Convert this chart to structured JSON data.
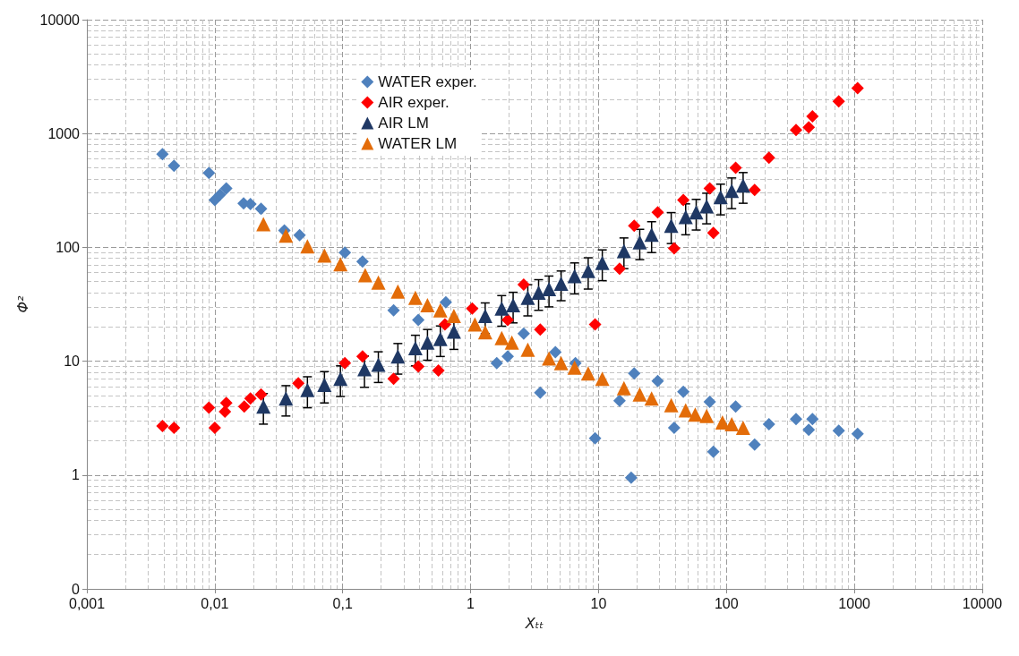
{
  "chart_data": {
    "type": "scatter",
    "xlabel": "Xₜₜ",
    "ylabel": "Φ²",
    "log": "xy",
    "grid": true,
    "legend": "top",
    "xlim": [
      0.001,
      10000
    ],
    "ylim": [
      0.1,
      10000
    ],
    "xticks": [
      {
        "value": 0.001,
        "label": "0,001"
      },
      {
        "value": 0.01,
        "label": "0,01"
      },
      {
        "value": 0.1,
        "label": "0,1"
      },
      1,
      10,
      100,
      1000,
      10000
    ],
    "yticks": [
      {
        "value": 0.1,
        "label": "0"
      },
      1,
      10,
      100,
      1000,
      10000
    ],
    "series": [
      {
        "name": "WATER exper.",
        "color": "#4f81bd",
        "marker": "diamond",
        "x": [
          0.0039,
          0.0048,
          0.009,
          0.01,
          0.011,
          0.0123,
          0.0168,
          0.019,
          0.023,
          0.035,
          0.046,
          0.104,
          0.143,
          0.18,
          0.25,
          0.39,
          0.64,
          1.6,
          1.95,
          2.6,
          3.5,
          4.6,
          6.6,
          9.4,
          19,
          29,
          14.6,
          18,
          46,
          39,
          74,
          79,
          118,
          166,
          215,
          350,
          470,
          440,
          755,
          1060
        ],
        "values": [
          660,
          520,
          450,
          260,
          290,
          330,
          243,
          240,
          218,
          141,
          128,
          90,
          75,
          null,
          28,
          23,
          33,
          9.6,
          11,
          17.5,
          5.3,
          12,
          9.6,
          2.1,
          7.8,
          6.7,
          4.5,
          0.95,
          5.4,
          2.6,
          4.4,
          1.6,
          4.0,
          1.85,
          2.8,
          3.1,
          3.1,
          2.5,
          2.45,
          2.3
        ]
      },
      {
        "name": "AIR exper.",
        "color": "#ff0000",
        "marker": "diamond",
        "x": [
          0.0039,
          0.0048,
          0.009,
          0.01,
          0.0123,
          0.012,
          0.017,
          0.019,
          0.023,
          0.045,
          0.104,
          0.143,
          0.25,
          0.39,
          0.56,
          0.63,
          1.03,
          1.95,
          2.6,
          3.5,
          9.4,
          14.6,
          19,
          29,
          39,
          46,
          74,
          79,
          118,
          166,
          215,
          350,
          440,
          470,
          755,
          1060
        ],
        "values": [
          2.7,
          2.6,
          3.9,
          2.6,
          4.3,
          3.6,
          4.0,
          4.7,
          5.1,
          6.4,
          9.6,
          11,
          7.0,
          9.0,
          8.3,
          21,
          29,
          23,
          47,
          19,
          21,
          65,
          155,
          203,
          98,
          261,
          330,
          134,
          500,
          320,
          612,
          1075,
          1135,
          1415,
          1920,
          2500
        ]
      },
      {
        "name": "AIR LM",
        "color": "#1f3864",
        "marker": "triangle",
        "x": [
          0.024,
          0.036,
          0.053,
          0.072,
          0.096,
          0.148,
          0.19,
          0.27,
          0.37,
          0.46,
          0.58,
          0.74,
          1.1,
          1.3,
          1.75,
          2.15,
          2.8,
          3.4,
          4.1,
          5.1,
          6.5,
          8.3,
          10.7,
          15.8,
          21,
          26,
          37,
          48,
          58,
          70,
          90,
          110,
          135
        ],
        "values": [
          4.0,
          4.7,
          5.6,
          6.2,
          7.0,
          8.5,
          9.3,
          11,
          13,
          14.6,
          15.7,
          18.2,
          null,
          25,
          29,
          31,
          36,
          40,
          43,
          48,
          56,
          62,
          73,
          93,
          111,
          129,
          155,
          185,
          203,
          230,
          276,
          313,
          349
        ],
        "errors": [
          1.2,
          1.4,
          1.7,
          1.9,
          2.1,
          2.6,
          2.8,
          3.3,
          3.9,
          4.4,
          4.7,
          5.5,
          null,
          7.5,
          8.7,
          9.3,
          11,
          12,
          13,
          14,
          17,
          19,
          22,
          28,
          33,
          39,
          47,
          56,
          61,
          69,
          83,
          94,
          105
        ]
      },
      {
        "name": "WATER LM",
        "color": "#e36c09",
        "marker": "triangle",
        "x": [
          0.024,
          0.036,
          0.053,
          0.072,
          0.096,
          0.15,
          0.19,
          0.27,
          0.37,
          0.46,
          0.58,
          0.74,
          1.08,
          1.3,
          1.75,
          2.1,
          2.8,
          4.1,
          5.1,
          6.5,
          8.3,
          10.7,
          15.8,
          21,
          26,
          37,
          48,
          57,
          70,
          93,
          110,
          135
        ],
        "values": [
          160,
          127,
          102,
          85,
          71,
          57,
          49,
          41,
          36,
          31,
          28,
          25,
          21,
          18,
          16,
          14.6,
          12.6,
          10.6,
          9.6,
          8.8,
          7.8,
          7.0,
          5.8,
          5.1,
          4.7,
          4.1,
          3.7,
          3.4,
          3.3,
          2.9,
          2.8,
          2.6
        ]
      }
    ]
  }
}
